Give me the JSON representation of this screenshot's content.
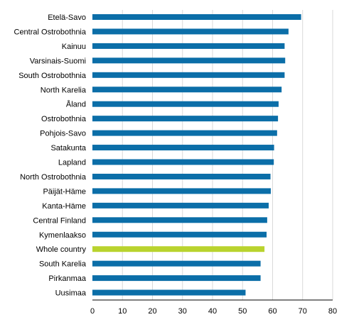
{
  "chart_data": {
    "type": "bar",
    "orientation": "horizontal",
    "categories": [
      "Etelä-Savo",
      "Central Ostrobothnia",
      "Kainuu",
      "Varsinais-Suomi",
      "South Ostrobothnia",
      "North Karelia",
      "Åland",
      "Ostrobothnia",
      "Pohjois-Savo",
      "Satakunta",
      "Lapland",
      "North Ostrobothnia",
      "Päijät-Häme",
      "Kanta-Häme",
      "Central Finland",
      "Kymenlaakso",
      "Whole country",
      "South Karelia",
      "Pirkanmaa",
      "Uusimaa"
    ],
    "values": [
      69.5,
      65.3,
      64.0,
      64.2,
      64.0,
      63.0,
      62.0,
      61.8,
      61.5,
      60.5,
      60.4,
      59.3,
      59.4,
      58.7,
      58.2,
      58.0,
      57.3,
      56.0,
      56.0,
      51.0
    ],
    "highlight": "Whole country",
    "colors": {
      "bar": "#0b6ea8",
      "highlight": "#b9d32e"
    },
    "xlim": [
      0,
      80
    ],
    "xticks": [
      "0",
      "10",
      "20",
      "30",
      "40",
      "50",
      "60",
      "70",
      "80"
    ],
    "grid": true,
    "title": "",
    "xlabel": "",
    "ylabel": ""
  }
}
